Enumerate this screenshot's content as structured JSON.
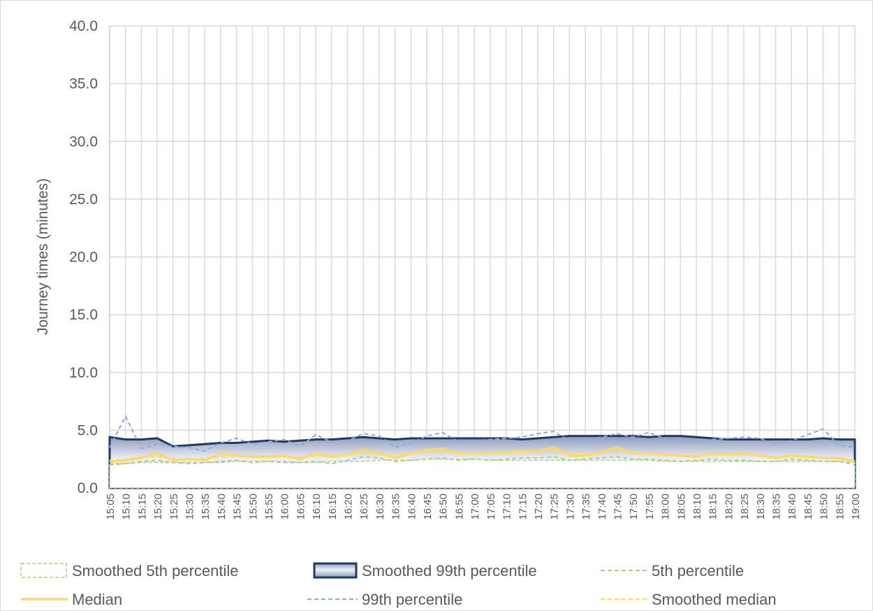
{
  "chart_data": {
    "type": "line",
    "y_label": "Journey times (minutes)",
    "categories": [
      "15:05",
      "15:10",
      "15:15",
      "15:20",
      "15:25",
      "15:30",
      "15:35",
      "15:40",
      "15:45",
      "15:50",
      "15:55",
      "16:00",
      "16:05",
      "16:10",
      "16:15",
      "16:20",
      "16:25",
      "16:30",
      "16:35",
      "16:40",
      "16:45",
      "16:50",
      "16:55",
      "17:00",
      "17:05",
      "17:10",
      "17:15",
      "17:20",
      "17:25",
      "17:30",
      "17:35",
      "17:40",
      "17:45",
      "17:50",
      "17:55",
      "18:00",
      "18:05",
      "18:10",
      "18:15",
      "18:20",
      "18:25",
      "18:30",
      "18:35",
      "18:40",
      "18:45",
      "18:50",
      "18:55",
      "19:00"
    ],
    "ylim": [
      0,
      40
    ],
    "yticks": [
      {
        "value": 0,
        "label": "0.0"
      },
      {
        "value": 5,
        "label": "5.0"
      },
      {
        "value": 10,
        "label": "10.0"
      },
      {
        "value": 15,
        "label": "15.0"
      },
      {
        "value": 20,
        "label": "20.0"
      },
      {
        "value": 25,
        "label": "25.0"
      },
      {
        "value": 30,
        "label": "30.0"
      },
      {
        "value": 35,
        "label": "35.0"
      },
      {
        "value": 40,
        "label": "40.0"
      }
    ],
    "grid": true,
    "series": [
      {
        "name": "Smoothed 99th percentile",
        "style": "area",
        "color": "#1f3864",
        "values": [
          4.4,
          4.2,
          4.2,
          4.3,
          3.6,
          3.7,
          3.8,
          3.9,
          3.9,
          4.0,
          4.1,
          4.0,
          4.1,
          4.2,
          4.2,
          4.3,
          4.4,
          4.3,
          4.2,
          4.3,
          4.3,
          4.3,
          4.3,
          4.3,
          4.3,
          4.3,
          4.2,
          4.3,
          4.4,
          4.5,
          4.5,
          4.5,
          4.5,
          4.5,
          4.4,
          4.5,
          4.5,
          4.4,
          4.3,
          4.2,
          4.2,
          4.2,
          4.2,
          4.2,
          4.2,
          4.3,
          4.2,
          4.2
        ]
      },
      {
        "name": "Smoothed 5th percentile",
        "style": "area",
        "color": "#a9d18e",
        "values": [
          2.1,
          2.1,
          2.2,
          2.2,
          2.2,
          2.2,
          2.2,
          2.2,
          2.3,
          2.3,
          2.3,
          2.3,
          2.2,
          2.2,
          2.3,
          2.3,
          2.3,
          2.4,
          2.4,
          2.4,
          2.5,
          2.5,
          2.5,
          2.5,
          2.4,
          2.4,
          2.4,
          2.4,
          2.4,
          2.4,
          2.4,
          2.4,
          2.4,
          2.4,
          2.4,
          2.3,
          2.3,
          2.3,
          2.3,
          2.3,
          2.3,
          2.3,
          2.3,
          2.3,
          2.3,
          2.3,
          2.3,
          2.2
        ]
      },
      {
        "name": "5th percentile",
        "style": "line",
        "dash": true,
        "color": "#a9d18e",
        "values": [
          2.0,
          2.1,
          2.3,
          2.4,
          2.2,
          2.1,
          2.2,
          2.3,
          2.4,
          2.2,
          2.3,
          2.2,
          2.2,
          2.3,
          2.1,
          2.4,
          2.7,
          2.6,
          2.3,
          2.4,
          2.5,
          2.6,
          2.4,
          2.5,
          2.4,
          2.5,
          2.6,
          2.6,
          2.7,
          2.4,
          2.5,
          2.6,
          2.7,
          2.5,
          2.5,
          2.4,
          2.3,
          2.4,
          2.5,
          2.4,
          2.4,
          2.3,
          2.3,
          2.5,
          2.4,
          2.3,
          2.3,
          2.0
        ]
      },
      {
        "name": "Median",
        "style": "line",
        "dash": false,
        "color": "#ffd966",
        "values": [
          2.3,
          2.4,
          2.6,
          3.0,
          2.4,
          2.5,
          2.4,
          3.0,
          2.8,
          2.7,
          2.7,
          2.8,
          2.5,
          3.0,
          2.7,
          2.9,
          3.3,
          3.0,
          2.6,
          3.0,
          3.3,
          3.4,
          3.0,
          3.0,
          3.0,
          3.1,
          3.2,
          3.2,
          3.5,
          2.8,
          2.8,
          3.1,
          3.5,
          3.0,
          3.0,
          2.9,
          2.8,
          2.7,
          3.0,
          2.9,
          3.0,
          2.8,
          2.6,
          2.8,
          2.7,
          2.6,
          2.6,
          2.3
        ]
      },
      {
        "name": "99th percentile",
        "style": "line",
        "dash": true,
        "color": "#8faadc",
        "values": [
          3.5,
          6.2,
          3.4,
          3.8,
          3.6,
          3.5,
          3.2,
          3.9,
          4.3,
          3.8,
          4.0,
          4.2,
          3.6,
          4.6,
          4.0,
          4.1,
          4.7,
          4.5,
          3.5,
          3.9,
          4.5,
          4.8,
          4.0,
          4.1,
          4.2,
          4.3,
          4.4,
          4.7,
          4.9,
          4.1,
          4.2,
          4.4,
          4.7,
          4.4,
          4.8,
          4.3,
          4.0,
          3.9,
          4.2,
          4.3,
          4.4,
          4.3,
          3.8,
          4.1,
          4.6,
          5.1,
          3.7,
          3.5
        ]
      },
      {
        "name": "Smoothed median",
        "style": "line",
        "dash": true,
        "color": "#ffd966",
        "values": [
          2.4,
          2.5,
          2.7,
          2.7,
          2.6,
          2.5,
          2.6,
          2.7,
          2.8,
          2.8,
          2.7,
          2.7,
          2.7,
          2.8,
          2.8,
          2.9,
          3.0,
          3.0,
          2.9,
          3.0,
          3.1,
          3.2,
          3.1,
          3.0,
          3.0,
          3.0,
          3.1,
          3.2,
          3.2,
          3.1,
          3.0,
          3.1,
          3.2,
          3.1,
          3.0,
          2.9,
          2.8,
          2.8,
          2.9,
          2.9,
          2.9,
          2.8,
          2.7,
          2.7,
          2.7,
          2.6,
          2.5,
          2.4
        ]
      }
    ]
  }
}
